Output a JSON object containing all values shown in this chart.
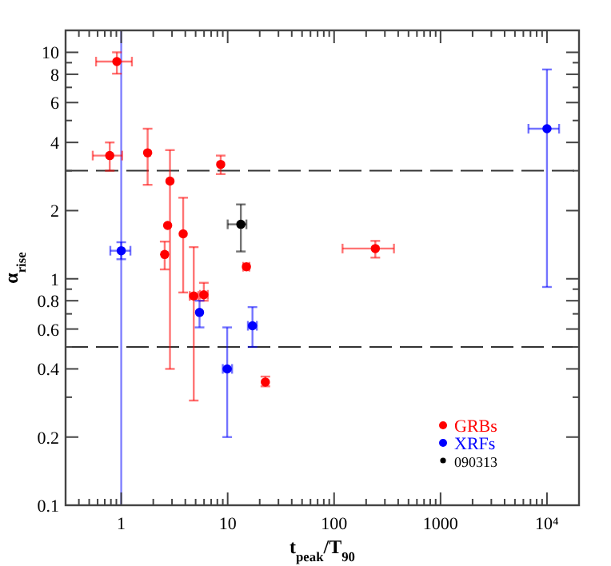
{
  "chart_data": {
    "type": "scatter",
    "xlabel": "t$_{peak}$/T$_{90}$",
    "ylabel": "α$_{rise}$",
    "log": "xy",
    "marker": "circle",
    "legend": "bottom right",
    "grid": false,
    "xlim": [
      0.3,
      20000
    ],
    "ylim": [
      0.1,
      12.5
    ],
    "xticks": [
      {
        "value": 0.4,
        "label": null
      },
      {
        "value": 0.5,
        "label": null
      },
      {
        "value": 0.6,
        "label": null
      },
      {
        "value": 0.7,
        "label": null
      },
      {
        "value": 0.8,
        "label": null
      },
      {
        "value": 0.9,
        "label": null
      },
      1,
      {
        "value": 2,
        "label": null
      },
      {
        "value": 3,
        "label": null
      },
      {
        "value": 4,
        "label": null
      },
      {
        "value": 5,
        "label": null
      },
      {
        "value": 6,
        "label": null
      },
      {
        "value": 7,
        "label": null
      },
      {
        "value": 8,
        "label": null
      },
      {
        "value": 9,
        "label": null
      },
      10,
      {
        "value": 20,
        "label": null
      },
      {
        "value": 30,
        "label": null
      },
      {
        "value": 40,
        "label": null
      },
      {
        "value": 50,
        "label": null
      },
      {
        "value": 60,
        "label": null
      },
      {
        "value": 70,
        "label": null
      },
      {
        "value": 80,
        "label": null
      },
      {
        "value": 90,
        "label": null
      },
      100,
      {
        "value": 200,
        "label": null
      },
      {
        "value": 300,
        "label": null
      },
      {
        "value": 400,
        "label": null
      },
      {
        "value": 500,
        "label": null
      },
      {
        "value": 600,
        "label": null
      },
      {
        "value": 700,
        "label": null
      },
      {
        "value": 800,
        "label": null
      },
      {
        "value": 900,
        "label": null
      },
      1000,
      {
        "value": 2000,
        "label": null
      },
      {
        "value": 3000,
        "label": null
      },
      {
        "value": 4000,
        "label": null
      },
      {
        "value": 5000,
        "label": null
      },
      {
        "value": 6000,
        "label": null
      },
      {
        "value": 7000,
        "label": null
      },
      {
        "value": 8000,
        "label": null
      },
      {
        "value": 9000,
        "label": null
      },
      {
        "value": 10000,
        "label": "10⁴"
      },
      {
        "value": 20000,
        "label": null
      }
    ],
    "yticks": [
      0.1,
      0.2,
      {
        "value": 0.3,
        "label": null
      },
      0.4,
      {
        "value": 0.5,
        "label": null
      },
      0.6,
      {
        "value": 0.7,
        "label": null
      },
      0.8,
      {
        "value": 0.9,
        "label": null
      },
      1,
      2,
      {
        "value": 3,
        "label": null
      },
      4,
      {
        "value": 5,
        "label": null
      },
      6,
      {
        "value": 7,
        "label": null
      },
      8,
      {
        "value": 9,
        "label": null
      },
      10
    ],
    "ref_lines": [
      {
        "axis": "y",
        "value": 3,
        "color": "#333333",
        "line_style": "dashed"
      },
      {
        "axis": "y",
        "value": 0.5,
        "color": "#333333",
        "line_style": "dashed"
      },
      {
        "axis": "x",
        "value": 1,
        "color": "#8080ff",
        "line_style": "solid"
      }
    ],
    "series": [
      {
        "name": "GRBs",
        "color": "#ff0000",
        "x": [
          0.91,
          0.78,
          1.77,
          2.87,
          2.73,
          2.56,
          3.82,
          4.8,
          5.97,
          8.6,
          15,
          22.6,
          244
        ],
        "values": [
          9.1,
          3.5,
          3.6,
          2.7,
          1.72,
          1.28,
          1.58,
          0.84,
          0.85,
          3.2,
          1.13,
          0.35,
          1.36
        ],
        "errors": [
          [
            8.05,
            10.0
          ],
          [
            3.0,
            4.0
          ],
          [
            2.6,
            4.6
          ],
          [
            0.4,
            3.7
          ],
          null,
          [
            1.1,
            1.46
          ],
          [
            0.87,
            2.28
          ],
          [
            0.29,
            1.38
          ],
          [
            0.8,
            0.96
          ],
          [
            2.9,
            3.5
          ],
          null,
          [
            0.335,
            0.37
          ],
          [
            1.24,
            1.47
          ]
        ],
        "xerrors": [
          [
            0.58,
            1.26
          ],
          [
            0.54,
            1.02
          ],
          null,
          null,
          null,
          null,
          null,
          [
            4.4,
            5.3
          ],
          [
            5.5,
            6.5
          ],
          null,
          [
            14,
            16
          ],
          null,
          [
            120,
            365
          ]
        ]
      },
      {
        "name": "XRFs",
        "color": "#0000ff",
        "x": [
          1.0,
          5.44,
          9.9,
          17.1,
          10000
        ],
        "values": [
          1.33,
          0.71,
          0.4,
          0.62,
          4.6
        ],
        "errors": [
          [
            1.22,
            1.45
          ],
          [
            0.61,
            0.8
          ],
          [
            0.2,
            0.61
          ],
          [
            0.5,
            0.75
          ],
          [
            0.92,
            8.4
          ]
        ],
        "xerrors": [
          [
            0.79,
            1.22
          ],
          null,
          [
            9,
            11
          ],
          [
            15.5,
            18.8
          ],
          [
            6700,
            13000
          ]
        ]
      },
      {
        "name": "090313",
        "color": "#000000",
        "x": [
          13.3
        ],
        "values": [
          1.74
        ],
        "errors": [
          [
            1.32,
            2.13
          ]
        ],
        "xerrors": [
          [
            10,
            15
          ]
        ]
      }
    ]
  }
}
